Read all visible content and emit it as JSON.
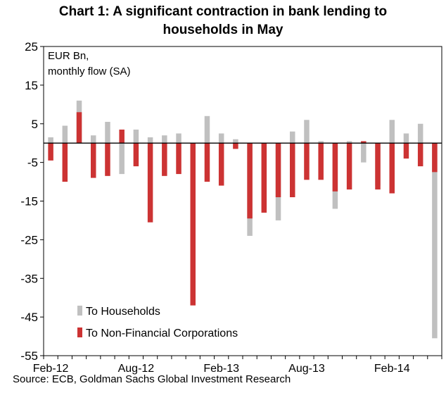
{
  "title_lines": [
    "Chart 1: A significant contraction in bank lending to",
    "households in May"
  ],
  "source": "Source: ECB,  Goldman Sachs Global Investment Research",
  "chart_data": {
    "type": "bar",
    "subtype": "overlapping",
    "unit_label_lines": [
      "EUR  Bn,",
      "monthly flow  (SA)"
    ],
    "ylim": [
      -55,
      25
    ],
    "yticks": [
      25,
      15,
      5,
      -5,
      -15,
      -25,
      -35,
      -45,
      -55
    ],
    "x_tick_labels": [
      "Feb-12",
      "Aug-12",
      "Feb-13",
      "Aug-13",
      "Feb-14"
    ],
    "x_tick_label_indices": [
      0,
      6,
      12,
      18,
      24
    ],
    "categories": [
      "Feb-12",
      "Mar-12",
      "Apr-12",
      "May-12",
      "Jun-12",
      "Jul-12",
      "Aug-12",
      "Sep-12",
      "Oct-12",
      "Nov-12",
      "Dec-12",
      "Jan-13",
      "Feb-13",
      "Mar-13",
      "Apr-13",
      "May-13",
      "Jun-13",
      "Jul-13",
      "Aug-13",
      "Sep-13",
      "Oct-13",
      "Nov-13",
      "Dec-13",
      "Jan-14",
      "Feb-14",
      "Mar-14",
      "Apr-14",
      "May-14"
    ],
    "grid": false,
    "legend_position": "bottom-left",
    "series": [
      {
        "name": "To Households",
        "color": "#c0c0c0",
        "values": [
          1.5,
          4.5,
          11,
          2,
          5.5,
          -8,
          3.5,
          1.5,
          2,
          2.5,
          -41,
          7,
          2.5,
          1,
          -24,
          -17,
          -20,
          3,
          6,
          0.5,
          -17,
          0.5,
          -5,
          -11,
          6,
          2.5,
          5,
          -50.5
        ]
      },
      {
        "name": "To Non-Financial Corporations",
        "color": "#cc3333",
        "values": [
          -4.5,
          -10,
          8,
          -9,
          -8.5,
          3.5,
          -6,
          -20.5,
          -8.5,
          -8,
          -42,
          -10,
          -11,
          -1.5,
          -19.5,
          -18,
          -14,
          -14,
          -9.5,
          -9.5,
          -12.5,
          -12,
          0.5,
          -12,
          -13,
          -4,
          -6,
          -7.5
        ]
      }
    ]
  }
}
